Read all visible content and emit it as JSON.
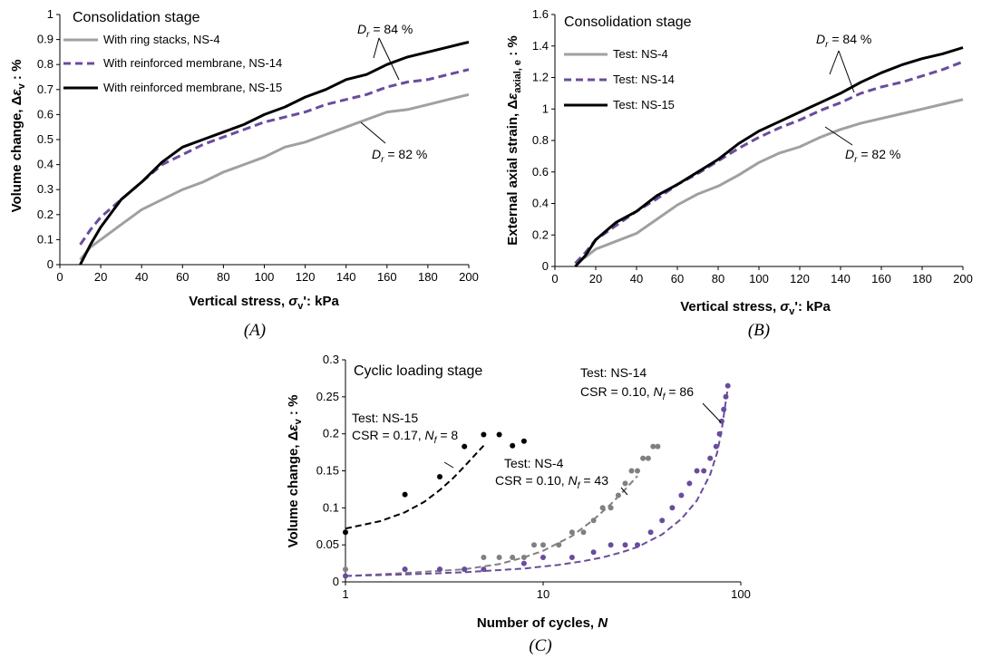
{
  "chart_data": [
    {
      "type": "line",
      "panel_label": "(A)",
      "title": "Consolidation stage",
      "xlabel": "Vertical stress, σv': kPa",
      "ylabel": "Volume change, Δεv : %",
      "xlim": [
        0,
        200
      ],
      "ylim": [
        0,
        1
      ],
      "x_ticks": [
        0,
        20,
        40,
        60,
        80,
        100,
        120,
        140,
        160,
        180,
        200
      ],
      "y_ticks": [
        0,
        0.1,
        0.2,
        0.3,
        0.4,
        0.5,
        0.6,
        0.7,
        0.8,
        0.9,
        1
      ],
      "legend_position": "top-left",
      "grid": false,
      "series": [
        {
          "name": "With ring stacks, NS-4",
          "color": "#a0a0a0",
          "style": "solid",
          "x": [
            10,
            15,
            20,
            30,
            40,
            50,
            60,
            70,
            80,
            90,
            100,
            110,
            120,
            130,
            140,
            150,
            160,
            170,
            180,
            190,
            200
          ],
          "y": [
            0.02,
            0.07,
            0.1,
            0.16,
            0.22,
            0.26,
            0.3,
            0.33,
            0.37,
            0.4,
            0.43,
            0.47,
            0.49,
            0.52,
            0.55,
            0.58,
            0.61,
            0.62,
            0.64,
            0.66,
            0.68
          ]
        },
        {
          "name": "With reinforced membrane, NS-14",
          "color": "#6a4c9c",
          "style": "dashed",
          "x": [
            10,
            15,
            20,
            30,
            40,
            50,
            60,
            70,
            80,
            90,
            100,
            110,
            120,
            130,
            140,
            150,
            160,
            170,
            180,
            190,
            200
          ],
          "y": [
            0.08,
            0.14,
            0.19,
            0.26,
            0.33,
            0.4,
            0.44,
            0.48,
            0.51,
            0.54,
            0.57,
            0.59,
            0.61,
            0.64,
            0.66,
            0.68,
            0.71,
            0.73,
            0.74,
            0.76,
            0.78
          ]
        },
        {
          "name": "With reinforced membrane, NS-15",
          "color": "#000000",
          "style": "solid",
          "x": [
            10,
            15,
            20,
            30,
            40,
            50,
            60,
            70,
            80,
            90,
            100,
            110,
            120,
            130,
            140,
            150,
            160,
            170,
            180,
            190,
            200
          ],
          "y": [
            0.0,
            0.08,
            0.15,
            0.26,
            0.33,
            0.41,
            0.47,
            0.5,
            0.53,
            0.56,
            0.6,
            0.63,
            0.67,
            0.7,
            0.74,
            0.76,
            0.8,
            0.83,
            0.85,
            0.87,
            0.89
          ]
        }
      ],
      "annotations": [
        {
          "text_main": "D",
          "text_sub": "r",
          "text_rest": " = 84 %"
        },
        {
          "text_main": "D",
          "text_sub": "r",
          "text_rest": " = 82 %"
        }
      ]
    },
    {
      "type": "line",
      "panel_label": "(B)",
      "title": "Consolidation stage",
      "xlabel": "Vertical stress, σv': kPa",
      "ylabel": "External axial strain, Δεaxial, e : %",
      "xlim": [
        0,
        200
      ],
      "ylim": [
        0,
        1.6
      ],
      "x_ticks": [
        0,
        20,
        40,
        60,
        80,
        100,
        120,
        140,
        160,
        180,
        200
      ],
      "y_ticks": [
        0,
        0.2,
        0.4,
        0.6,
        0.8,
        1,
        1.2,
        1.4,
        1.6
      ],
      "legend_position": "top-left",
      "grid": false,
      "series": [
        {
          "name": "Test: NS-4",
          "color": "#a0a0a0",
          "style": "solid",
          "x": [
            10,
            15,
            20,
            30,
            40,
            50,
            60,
            70,
            80,
            90,
            100,
            110,
            120,
            130,
            140,
            150,
            160,
            170,
            180,
            190,
            200
          ],
          "y": [
            0.02,
            0.06,
            0.11,
            0.16,
            0.21,
            0.3,
            0.39,
            0.46,
            0.51,
            0.58,
            0.66,
            0.72,
            0.76,
            0.82,
            0.87,
            0.91,
            0.94,
            0.97,
            1.0,
            1.03,
            1.06
          ]
        },
        {
          "name": "Test: NS-14",
          "color": "#6a4c9c",
          "style": "dashed",
          "x": [
            10,
            15,
            20,
            30,
            40,
            50,
            60,
            70,
            80,
            90,
            100,
            110,
            120,
            130,
            140,
            150,
            160,
            170,
            180,
            190,
            200
          ],
          "y": [
            0.02,
            0.09,
            0.17,
            0.26,
            0.35,
            0.43,
            0.52,
            0.59,
            0.67,
            0.75,
            0.82,
            0.88,
            0.93,
            0.99,
            1.04,
            1.1,
            1.14,
            1.17,
            1.21,
            1.25,
            1.3
          ]
        },
        {
          "name": "Test: NS-15",
          "color": "#000000",
          "style": "solid",
          "x": [
            10,
            15,
            20,
            30,
            40,
            50,
            60,
            70,
            80,
            90,
            100,
            110,
            120,
            130,
            140,
            150,
            160,
            170,
            180,
            190,
            200
          ],
          "y": [
            0.0,
            0.07,
            0.17,
            0.28,
            0.35,
            0.45,
            0.52,
            0.6,
            0.68,
            0.78,
            0.86,
            0.92,
            0.98,
            1.04,
            1.1,
            1.17,
            1.23,
            1.28,
            1.32,
            1.35,
            1.39
          ]
        }
      ],
      "annotations": [
        {
          "text_main": "D",
          "text_sub": "r",
          "text_rest": " = 84 %"
        },
        {
          "text_main": "D",
          "text_sub": "r",
          "text_rest": " = 82 %"
        }
      ]
    },
    {
      "type": "scatter",
      "panel_label": "(C)",
      "title": "Cyclic loading stage",
      "xlabel": "Number of cycles, N",
      "ylabel": "Volume change, Δεv : %",
      "xscale": "log",
      "xlim": [
        1,
        100
      ],
      "ylim": [
        0,
        0.3
      ],
      "x_ticks": [
        1,
        10,
        100
      ],
      "y_ticks": [
        0,
        0.05,
        0.1,
        0.15,
        0.2,
        0.25,
        0.3
      ],
      "grid": false,
      "series": [
        {
          "name": "Test: NS-15",
          "color": "#000000",
          "x": [
            1,
            2,
            3,
            4,
            5,
            6,
            7,
            8
          ],
          "y": [
            0.067,
            0.118,
            0.142,
            0.183,
            0.199,
            0.199,
            0.184,
            0.19
          ],
          "fit_x": [
            1,
            1.5,
            2,
            2.5,
            3,
            3.5,
            4,
            4.5,
            5
          ],
          "fit_y": [
            0.072,
            0.082,
            0.094,
            0.108,
            0.124,
            0.14,
            0.156,
            0.171,
            0.184
          ]
        },
        {
          "name": "Test: NS-4",
          "color": "#808080",
          "x": [
            1,
            2,
            3,
            4,
            5,
            6,
            7,
            8,
            9,
            10,
            12,
            14,
            16,
            18,
            20,
            22,
            24,
            26,
            28,
            30,
            32,
            34,
            36,
            38
          ],
          "y": [
            0.017,
            0.017,
            0.017,
            0.017,
            0.033,
            0.033,
            0.033,
            0.033,
            0.05,
            0.05,
            0.05,
            0.067,
            0.067,
            0.083,
            0.1,
            0.1,
            0.117,
            0.133,
            0.15,
            0.15,
            0.167,
            0.167,
            0.183,
            0.183
          ],
          "fit_x": [
            1,
            2,
            4,
            6,
            8,
            10,
            14,
            18,
            22,
            26,
            30
          ],
          "fit_y": [
            0.008,
            0.012,
            0.017,
            0.024,
            0.033,
            0.042,
            0.062,
            0.084,
            0.105,
            0.125,
            0.143
          ]
        },
        {
          "name": "Test: NS-14",
          "color": "#6a4c9c",
          "x": [
            1,
            2,
            3,
            4,
            5,
            8,
            10,
            14,
            18,
            22,
            26,
            30,
            35,
            40,
            45,
            50,
            55,
            60,
            65,
            70,
            75,
            78,
            80,
            82,
            84,
            86
          ],
          "y": [
            0.008,
            0.017,
            0.017,
            0.017,
            0.017,
            0.025,
            0.033,
            0.033,
            0.04,
            0.05,
            0.05,
            0.05,
            0.067,
            0.083,
            0.1,
            0.117,
            0.133,
            0.15,
            0.15,
            0.167,
            0.183,
            0.2,
            0.217,
            0.233,
            0.25,
            0.265
          ],
          "fit_x": [
            1,
            2,
            4,
            8,
            12,
            16,
            20,
            25,
            30,
            40,
            50,
            60,
            70,
            76,
            80,
            83,
            86
          ],
          "fit_y": [
            0.008,
            0.01,
            0.013,
            0.018,
            0.023,
            0.028,
            0.033,
            0.04,
            0.047,
            0.064,
            0.085,
            0.11,
            0.145,
            0.175,
            0.205,
            0.235,
            0.262
          ]
        }
      ],
      "annotations": [
        {
          "line1": "Test: NS-15",
          "line2_pre": "CSR = 0.17, ",
          "line2_main": "N",
          "line2_sub": "f",
          "line2_rest": " = 8"
        },
        {
          "line1": "Test: NS-4",
          "line2_pre": "CSR = 0.10, ",
          "line2_main": "N",
          "line2_sub": "f",
          "line2_rest": " = 43"
        },
        {
          "line1": "Test: NS-14",
          "line2_pre": "CSR = 0.10, ",
          "line2_main": "N",
          "line2_sub": "f",
          "line2_rest": " = 86"
        }
      ]
    }
  ]
}
